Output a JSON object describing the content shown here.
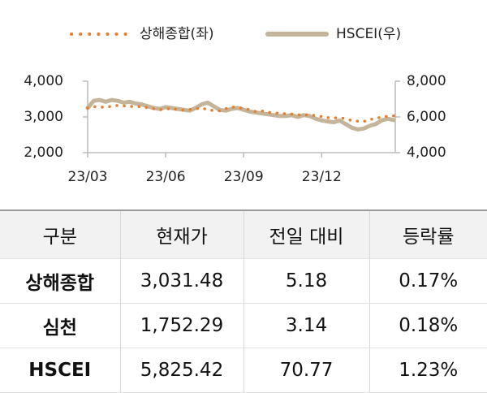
{
  "chart_data": {
    "type": "line",
    "categories": [
      "23/03",
      null,
      null,
      null,
      null,
      null,
      null,
      null,
      null,
      null,
      null,
      null,
      null,
      "23/06",
      null,
      null,
      null,
      null,
      null,
      null,
      null,
      null,
      null,
      null,
      null,
      null,
      "23/09",
      null,
      null,
      null,
      null,
      null,
      null,
      null,
      null,
      null,
      null,
      null,
      null,
      "23/12",
      null,
      null,
      null,
      null,
      null,
      null,
      null,
      null,
      null,
      null,
      null,
      null
    ],
    "series": [
      {
        "name": "상해종합(좌)",
        "color": "#e87d2b",
        "style": "dotted",
        "axis": "y",
        "values": [
          3250,
          3290,
          3280,
          3270,
          3300,
          3320,
          3310,
          3290,
          3300,
          3280,
          3260,
          3230,
          3200,
          3220,
          3240,
          3200,
          3190,
          3210,
          3230,
          3250,
          3200,
          3180,
          3170,
          3230,
          3280,
          3260,
          3240,
          3200,
          3150,
          3170,
          3130,
          3110,
          3100,
          3090,
          3080,
          3060,
          3050,
          3070,
          3030,
          3010,
          2980,
          2970,
          2980,
          2950,
          2900,
          2880,
          2870,
          2930,
          2950,
          3000,
          3020,
          3030
        ]
      },
      {
        "name": "HSCEI(우)",
        "color": "#c4b49a",
        "style": "solid",
        "axis": "y2",
        "values": [
          6500,
          6900,
          6950,
          6850,
          6950,
          6900,
          6800,
          6850,
          6750,
          6700,
          6600,
          6500,
          6450,
          6550,
          6500,
          6450,
          6400,
          6350,
          6500,
          6700,
          6800,
          6600,
          6400,
          6350,
          6450,
          6500,
          6400,
          6300,
          6250,
          6200,
          6150,
          6100,
          6050,
          6050,
          6100,
          6000,
          6100,
          6050,
          5900,
          5800,
          5750,
          5700,
          5800,
          5600,
          5400,
          5300,
          5350,
          5500,
          5600,
          5800,
          5900,
          5825
        ]
      }
    ],
    "ylim": [
      2000,
      4000
    ],
    "yticks": [
      {
        "value": 2000,
        "label": "2,000"
      },
      {
        "value": 3000,
        "label": "3,000"
      },
      {
        "value": 4000,
        "label": "4,000"
      }
    ],
    "y2lim": [
      4000,
      8000
    ],
    "y2ticks": [
      {
        "value": 4000,
        "label": "4,000"
      },
      {
        "value": 6000,
        "label": "6,000"
      },
      {
        "value": 8000,
        "label": "8,000"
      }
    ],
    "grid": false,
    "legend": "top"
  },
  "table": {
    "header": [
      "구분",
      "현재가",
      "전일 대비",
      "등락률"
    ],
    "rows": [
      [
        "상해종합",
        "3,031.48",
        "5.18",
        "0.17%"
      ],
      [
        "심천",
        "1,752.29",
        "3.14",
        "0.18%"
      ],
      [
        "HSCEI",
        "5,825.42",
        "70.77",
        "1.23%"
      ]
    ]
  }
}
